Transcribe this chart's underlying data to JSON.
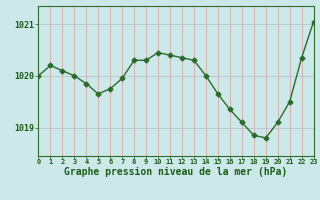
{
  "hours": [
    0,
    1,
    2,
    3,
    4,
    5,
    6,
    7,
    8,
    9,
    10,
    11,
    12,
    13,
    14,
    15,
    16,
    17,
    18,
    19,
    20,
    21,
    22,
    23
  ],
  "pressure": [
    1020.0,
    1020.2,
    1020.1,
    1020.0,
    1019.85,
    1019.65,
    1019.75,
    1019.95,
    1020.3,
    1020.3,
    1020.45,
    1020.4,
    1020.35,
    1020.3,
    1020.0,
    1019.65,
    1019.35,
    1019.1,
    1018.85,
    1018.8,
    1019.1,
    1019.5,
    1020.35,
    1021.05
  ],
  "line_color": "#2d6a2d",
  "marker_color": "#2d6a2d",
  "bg_color": "#cce8e8",
  "grid_color_v": "#d4a0a0",
  "grid_color_h": "#b8b8c8",
  "border_color": "#2d6a2d",
  "xlabel": "Graphe pression niveau de la mer (hPa)",
  "xlabel_color": "#1a5c1a",
  "ylabel_ticks": [
    1019,
    1020,
    1021
  ],
  "ylim": [
    1018.45,
    1021.35
  ],
  "xlim": [
    0,
    23
  ],
  "tick_color": "#1a5c1a"
}
